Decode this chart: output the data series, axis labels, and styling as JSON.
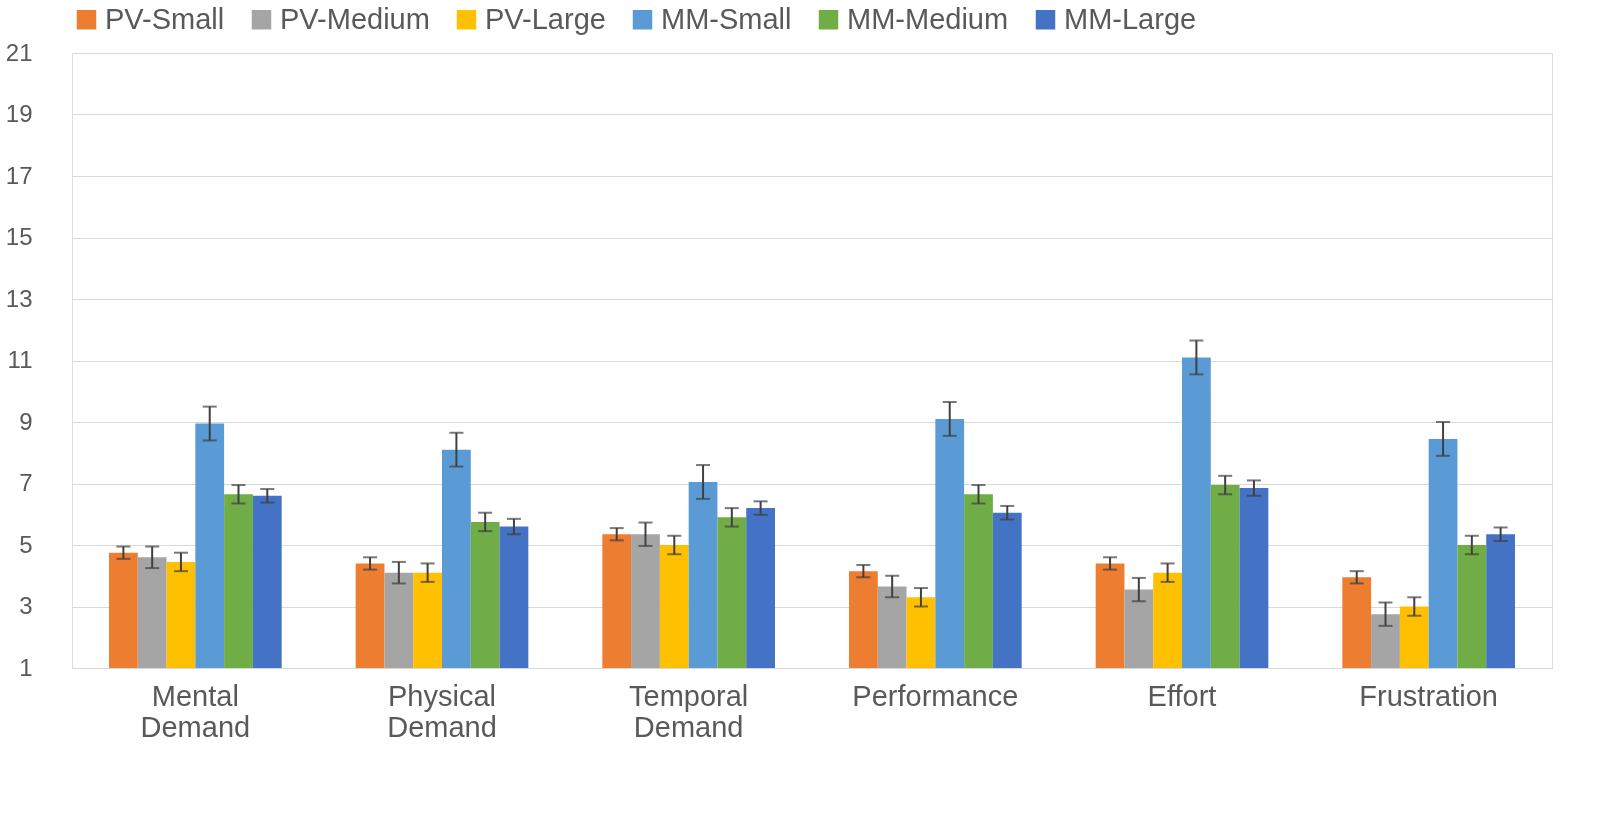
{
  "chart_data": {
    "type": "bar",
    "categories": [
      "Mental Demand",
      "Physical Demand",
      "Temporal Demand",
      "Performance",
      "Effort",
      "Frustration"
    ],
    "series": [
      {
        "name": "PV-Small",
        "color": "#ed7d31",
        "values": [
          4.75,
          4.4,
          5.35,
          4.15,
          4.4,
          3.95
        ],
        "errors": [
          0.2,
          0.2,
          0.2,
          0.2,
          0.2,
          0.2
        ]
      },
      {
        "name": "PV-Medium",
        "color": "#a5a5a5",
        "values": [
          4.6,
          4.1,
          5.35,
          3.65,
          3.55,
          2.75
        ],
        "errors": [
          0.35,
          0.35,
          0.38,
          0.35,
          0.38,
          0.38
        ]
      },
      {
        "name": "PV-Large",
        "color": "#ffc000",
        "values": [
          4.45,
          4.1,
          5.0,
          3.3,
          4.1,
          3.0
        ],
        "errors": [
          0.3,
          0.3,
          0.3,
          0.3,
          0.3,
          0.3
        ]
      },
      {
        "name": "MM-Small",
        "color": "#5b9bd5",
        "values": [
          8.95,
          8.1,
          7.05,
          9.1,
          11.1,
          8.45
        ],
        "errors": [
          0.55,
          0.55,
          0.55,
          0.55,
          0.55,
          0.55
        ]
      },
      {
        "name": "MM-Medium",
        "color": "#70ad47",
        "values": [
          6.65,
          5.75,
          5.9,
          6.65,
          6.95,
          5.0
        ],
        "errors": [
          0.3,
          0.3,
          0.3,
          0.3,
          0.3,
          0.3
        ]
      },
      {
        "name": "MM-Large",
        "color": "#4472c4",
        "values": [
          6.6,
          5.6,
          6.2,
          6.05,
          6.85,
          5.35
        ],
        "errors": [
          0.22,
          0.25,
          0.22,
          0.22,
          0.25,
          0.22
        ]
      }
    ],
    "ylim": [
      1,
      21
    ],
    "yticks": [
      1,
      3,
      5,
      7,
      9,
      11,
      13,
      15,
      17,
      19,
      21
    ],
    "grid": "y",
    "legend": "top"
  }
}
